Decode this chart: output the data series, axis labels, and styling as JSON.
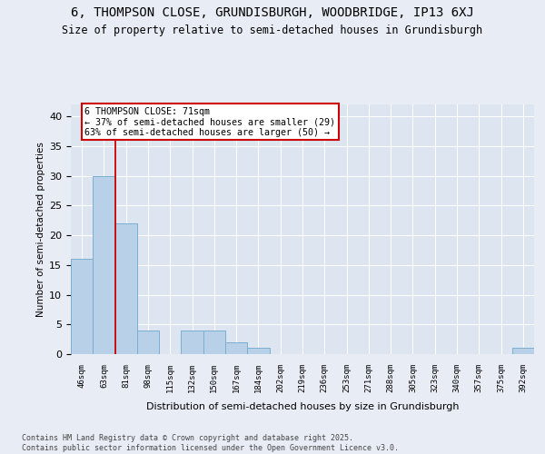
{
  "title1": "6, THOMPSON CLOSE, GRUNDISBURGH, WOODBRIDGE, IP13 6XJ",
  "title2": "Size of property relative to semi-detached houses in Grundisburgh",
  "xlabel": "Distribution of semi-detached houses by size in Grundisburgh",
  "ylabel": "Number of semi-detached properties",
  "categories": [
    "46sqm",
    "63sqm",
    "81sqm",
    "98sqm",
    "115sqm",
    "132sqm",
    "150sqm",
    "167sqm",
    "184sqm",
    "202sqm",
    "219sqm",
    "236sqm",
    "253sqm",
    "271sqm",
    "288sqm",
    "305sqm",
    "323sqm",
    "340sqm",
    "357sqm",
    "375sqm",
    "392sqm"
  ],
  "values": [
    16,
    30,
    22,
    4,
    0,
    4,
    4,
    2,
    1,
    0,
    0,
    0,
    0,
    0,
    0,
    0,
    0,
    0,
    0,
    0,
    1
  ],
  "bar_color": "#b8d0e8",
  "bar_edge_color": "#7aaed0",
  "annotation_text": "6 THOMPSON CLOSE: 71sqm\n← 37% of semi-detached houses are smaller (29)\n63% of semi-detached houses are larger (50) →",
  "footer": "Contains HM Land Registry data © Crown copyright and database right 2025.\nContains public sector information licensed under the Open Government Licence v3.0.",
  "ylim": [
    0,
    42
  ],
  "yticks": [
    0,
    5,
    10,
    15,
    20,
    25,
    30,
    35,
    40
  ],
  "background_color": "#e8edf5",
  "plot_bg_color": "#dce5f0",
  "grid_color": "#ffffff",
  "annotation_box_color": "#ffffff",
  "annotation_box_edge": "#cc0000",
  "property_line_color": "#cc0000",
  "property_line_x": 1.5
}
